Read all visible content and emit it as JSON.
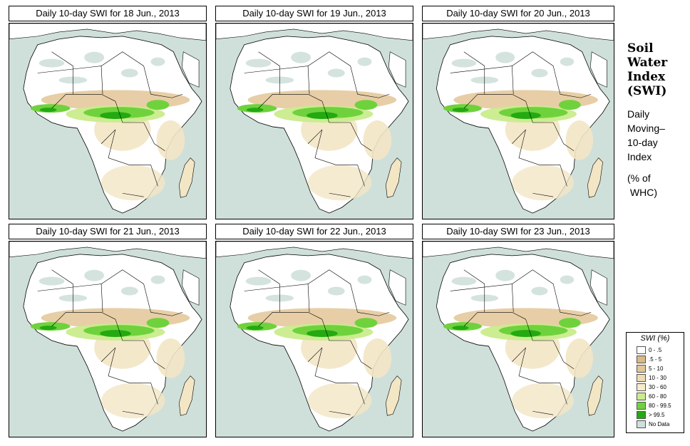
{
  "panels": [
    {
      "title": "Daily 10-day SWI for  18 Jun., 2013"
    },
    {
      "title": "Daily 10-day SWI for  19 Jun., 2013"
    },
    {
      "title": "Daily 10-day SWI for  20 Jun., 2013"
    },
    {
      "title": "Daily 10-day SWI for  21 Jun., 2013"
    },
    {
      "title": "Daily 10-day SWI for  22 Jun., 2013"
    },
    {
      "title": "Daily 10-day SWI for  23 Jun., 2013"
    }
  ],
  "side": {
    "title_lines": [
      "Soil",
      "Water",
      "Index",
      "(SWI)"
    ],
    "desc_lines": [
      "Daily",
      "Moving–",
      "10-day",
      "Index"
    ],
    "unit_lines": [
      "(% of",
      " WHC)"
    ]
  },
  "legend": {
    "title": "SWI (%)",
    "items": [
      {
        "label": "0 - .5",
        "color": "#ffffff"
      },
      {
        "label": ".5 - 5",
        "color": "#d9b98a"
      },
      {
        "label": "5 - 10",
        "color": "#e3c596"
      },
      {
        "label": "10 - 30",
        "color": "#efdcb4"
      },
      {
        "label": "30 - 60",
        "color": "#f6ebcc"
      },
      {
        "label": "60 - 80",
        "color": "#c9ec8c"
      },
      {
        "label": "80 - 99.5",
        "color": "#6fd23c"
      },
      {
        "label": "> 99.5",
        "color": "#22aa10"
      },
      {
        "label": "No Data",
        "color": "#cfe0da"
      }
    ]
  },
  "colors": {
    "ocean": "#cfe0da",
    "land": "#ffffff",
    "dry_tan": "#e3c596",
    "light_tan": "#f3e6c5",
    "light_green": "#c9ec8c",
    "mid_green": "#6fd23c",
    "dark_green": "#22aa10"
  }
}
